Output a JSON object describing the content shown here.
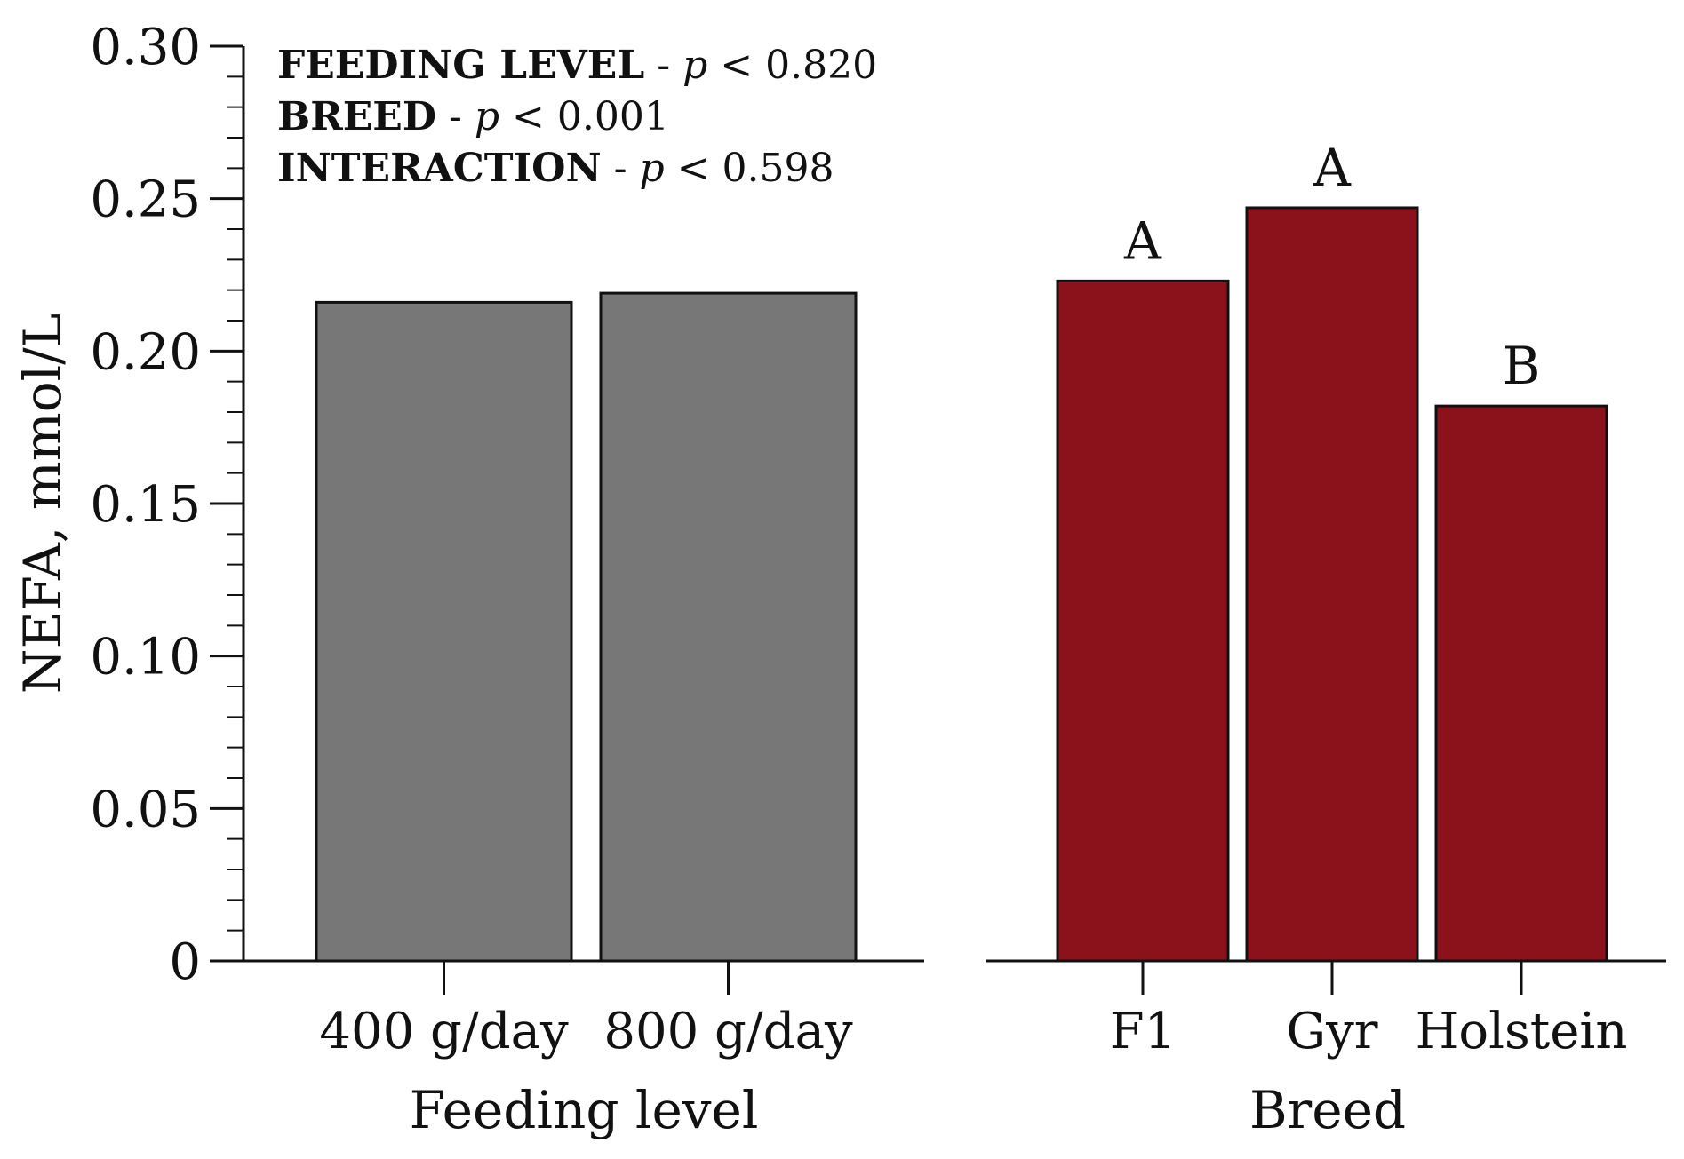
{
  "chart_data": [
    {
      "type": "bar",
      "panel": "left",
      "categories": [
        "400 g/day",
        "800 g/day"
      ],
      "values": [
        0.216,
        0.219
      ],
      "color": "#777777",
      "xlabel": "Feeding level",
      "ylabel": "NEFA, mmol/L",
      "ylim": [
        0,
        0.3
      ],
      "yticks": [
        "0",
        "0.05",
        "0.10",
        "0.15",
        "0.20",
        "0.25",
        "0.30"
      ],
      "annotations": [
        {
          "label": "FEEDING LEVEL",
          "sep": " - ",
          "p": "p",
          "op": " < ",
          "value": "0.820"
        },
        {
          "label": "BREED",
          "sep": " - ",
          "p": "p",
          "op": " < ",
          "value": "0.001"
        },
        {
          "label": "INTERACTION",
          "sep": " - ",
          "p": "p",
          "op": " < ",
          "value": "0.598"
        }
      ]
    },
    {
      "type": "bar",
      "panel": "right",
      "categories": [
        "F1",
        "Gyr",
        "Holstein"
      ],
      "values": [
        0.223,
        0.247,
        0.182
      ],
      "letters": [
        "A",
        "A",
        "B"
      ],
      "color": "#8b111b",
      "xlabel": "Breed",
      "ylabel": "",
      "ylim": [
        0,
        0.3
      ]
    }
  ]
}
